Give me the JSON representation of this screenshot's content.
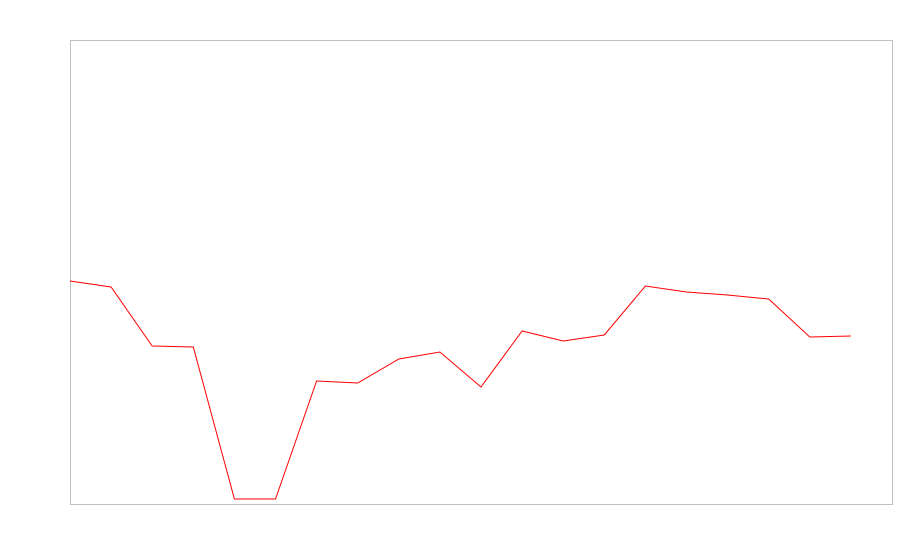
{
  "chart_data": {
    "type": "line",
    "title": "",
    "xlabel": "",
    "ylabel": "",
    "x": [
      0,
      1,
      2,
      3,
      4,
      5,
      6,
      7,
      8,
      9,
      10,
      11,
      12,
      13,
      14,
      15,
      16,
      17,
      18,
      19
    ],
    "series": [
      {
        "values": [
          223,
          217,
          158,
          157,
          5,
          5,
          123,
          121,
          145,
          152,
          117,
          173,
          163,
          169,
          218,
          212,
          209,
          205,
          167,
          168
        ],
        "color": "#ff0000"
      }
    ],
    "xlim": [
      0,
      20
    ],
    "ylim": [
      0,
      464
    ],
    "grid": false,
    "legend": "none",
    "frame_color": "#c0c0c0"
  }
}
